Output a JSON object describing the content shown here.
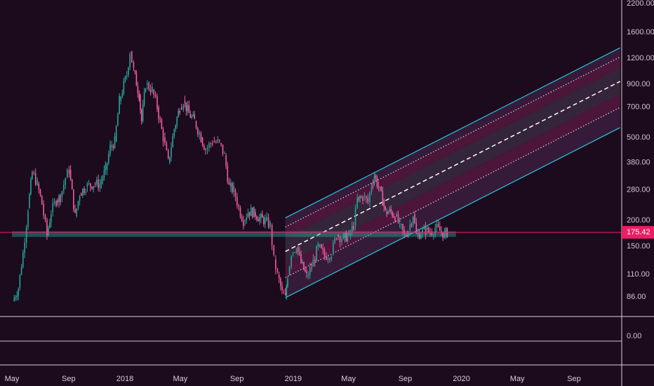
{
  "chart_data": {
    "type": "candlestick",
    "price_scale": "log",
    "x_ticks": [
      "May",
      "Sep",
      "2018",
      "May",
      "Sep",
      "2019",
      "May",
      "Sep",
      "2020",
      "May",
      "Sep"
    ],
    "x_tick_dates": [
      "2017-05-01",
      "2017-09-01",
      "2018-01-01",
      "2018-05-01",
      "2018-09-01",
      "2019-01-01",
      "2019-05-01",
      "2019-09-01",
      "2020-01-01",
      "2020-05-01",
      "2020-09-01"
    ],
    "y_ticks": [
      "2200.00",
      "1600.00",
      "1200.00",
      "900.00",
      "700.00",
      "500.00",
      "380.00",
      "280.00",
      "200.00",
      "150.00",
      "110.00",
      "86.00"
    ],
    "y_tick_values": [
      2200,
      1600,
      1200,
      900,
      700,
      500,
      380,
      280,
      200,
      150,
      110,
      86
    ],
    "indicator_pane": {
      "y_ticks": [
        "0.00"
      ]
    },
    "last_price": {
      "label": "175.42",
      "value": 175.42,
      "color": "#e91e63"
    },
    "horizontal_level": {
      "value": 172,
      "from": "2017-05-01",
      "to": "2019-12-20",
      "color": "#26a69a"
    },
    "regression_channel": {
      "from_date": "2018-12-15",
      "to_date": "2020-12-10",
      "mid_start": 142,
      "mid_end": 930,
      "lines": [
        {
          "offset_pct": 45,
          "style": "solid",
          "color": "#26c6da"
        },
        {
          "offset_pct": 31,
          "style": "dotted",
          "color": "#e8c8e8"
        },
        {
          "offset_pct": 0,
          "style": "dashed",
          "color": "#ffffff"
        },
        {
          "offset_pct": -25,
          "style": "dotted",
          "color": "#e8c8e8"
        },
        {
          "offset_pct": -40,
          "style": "solid",
          "color": "#26c6da"
        }
      ]
    },
    "series": [
      {
        "name": "",
        "points": [
          [
            "2017-05-03",
            82
          ],
          [
            "2017-05-15",
            95
          ],
          [
            "2017-05-25",
            140
          ],
          [
            "2017-06-05",
            230
          ],
          [
            "2017-06-14",
            340
          ],
          [
            "2017-06-25",
            300
          ],
          [
            "2017-07-05",
            240
          ],
          [
            "2017-07-16",
            170
          ],
          [
            "2017-07-25",
            220
          ],
          [
            "2017-08-05",
            250
          ],
          [
            "2017-08-14",
            260
          ],
          [
            "2017-08-25",
            320
          ],
          [
            "2017-09-02",
            350
          ],
          [
            "2017-09-15",
            210
          ],
          [
            "2017-09-25",
            270
          ],
          [
            "2017-10-08",
            290
          ],
          [
            "2017-10-25",
            300
          ],
          [
            "2017-11-08",
            300
          ],
          [
            "2017-11-20",
            350
          ],
          [
            "2017-11-30",
            450
          ],
          [
            "2017-12-10",
            480
          ],
          [
            "2017-12-20",
            750
          ],
          [
            "2018-01-05",
            1000
          ],
          [
            "2018-01-12",
            1300
          ],
          [
            "2018-01-20",
            1050
          ],
          [
            "2018-02-01",
            800
          ],
          [
            "2018-02-06",
            600
          ],
          [
            "2018-02-15",
            900
          ],
          [
            "2018-03-01",
            850
          ],
          [
            "2018-03-12",
            700
          ],
          [
            "2018-03-25",
            500
          ],
          [
            "2018-04-05",
            380
          ],
          [
            "2018-04-18",
            550
          ],
          [
            "2018-04-30",
            700
          ],
          [
            "2018-05-08",
            750
          ],
          [
            "2018-05-20",
            650
          ],
          [
            "2018-06-01",
            600
          ],
          [
            "2018-06-15",
            500
          ],
          [
            "2018-06-25",
            440
          ],
          [
            "2018-07-10",
            480
          ],
          [
            "2018-07-25",
            470
          ],
          [
            "2018-08-05",
            410
          ],
          [
            "2018-08-15",
            290
          ],
          [
            "2018-08-25",
            280
          ],
          [
            "2018-09-05",
            230
          ],
          [
            "2018-09-15",
            200
          ],
          [
            "2018-09-25",
            220
          ],
          [
            "2018-10-08",
            220
          ],
          [
            "2018-10-20",
            205
          ],
          [
            "2018-11-01",
            200
          ],
          [
            "2018-11-12",
            190
          ],
          [
            "2018-11-20",
            130
          ],
          [
            "2018-11-28",
            110
          ],
          [
            "2018-12-08",
            90
          ],
          [
            "2018-12-15",
            85
          ],
          [
            "2018-12-20",
            110
          ],
          [
            "2018-12-28",
            140
          ],
          [
            "2019-01-08",
            150
          ],
          [
            "2019-01-18",
            125
          ],
          [
            "2019-01-30",
            108
          ],
          [
            "2019-02-10",
            120
          ],
          [
            "2019-02-24",
            150
          ],
          [
            "2019-03-10",
            135
          ],
          [
            "2019-03-25",
            140
          ],
          [
            "2019-04-05",
            170
          ],
          [
            "2019-04-20",
            165
          ],
          [
            "2019-05-02",
            170
          ],
          [
            "2019-05-12",
            190
          ],
          [
            "2019-05-20",
            250
          ],
          [
            "2019-06-01",
            260
          ],
          [
            "2019-06-12",
            245
          ],
          [
            "2019-06-20",
            300
          ],
          [
            "2019-06-26",
            330
          ],
          [
            "2019-07-05",
            290
          ],
          [
            "2019-07-14",
            250
          ],
          [
            "2019-07-20",
            220
          ],
          [
            "2019-08-01",
            220
          ],
          [
            "2019-08-10",
            210
          ],
          [
            "2019-08-20",
            190
          ],
          [
            "2019-08-30",
            170
          ],
          [
            "2019-09-08",
            180
          ],
          [
            "2019-09-18",
            215
          ],
          [
            "2019-09-25",
            170
          ],
          [
            "2019-10-05",
            175
          ],
          [
            "2019-10-15",
            180
          ],
          [
            "2019-10-25",
            175
          ],
          [
            "2019-11-05",
            185
          ],
          [
            "2019-11-15",
            178
          ],
          [
            "2019-11-25",
            172
          ],
          [
            "2019-12-01",
            175.42
          ]
        ]
      }
    ]
  }
}
